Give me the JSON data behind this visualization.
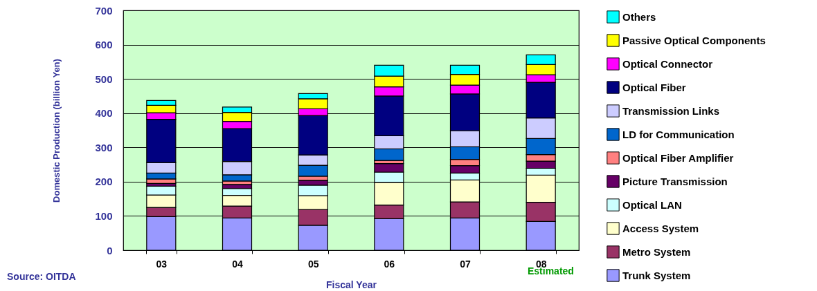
{
  "chart_data": {
    "type": "bar",
    "stacked": true,
    "xlabel": "Fiscal Year",
    "ylabel": "Domestic Production  (billion Yen)",
    "categories": [
      "03",
      "04",
      "05",
      "06",
      "07",
      "08"
    ],
    "ylim": [
      0,
      700
    ],
    "yticks": [
      0,
      100,
      200,
      300,
      400,
      500,
      600,
      700
    ],
    "grid": "y",
    "legend": "right",
    "annotations": [
      "Source: OITDA",
      "Estimated"
    ],
    "series": [
      {
        "name": "Trunk System",
        "color": "#9999ff",
        "values": [
          98,
          94,
          73,
          92,
          94,
          84
        ]
      },
      {
        "name": "Metro System",
        "color": "#993366",
        "values": [
          27,
          35,
          46,
          40,
          47,
          56
        ]
      },
      {
        "name": "Access System",
        "color": "#ffffcc",
        "values": [
          36,
          31,
          40,
          66,
          64,
          79
        ]
      },
      {
        "name": "Optical LAN",
        "color": "#ccffff",
        "values": [
          26,
          20,
          31,
          30,
          20,
          20
        ]
      },
      {
        "name": "Picture Transmission",
        "color": "#660066",
        "values": [
          8,
          12,
          14,
          25,
          22,
          21
        ]
      },
      {
        "name": "Optical Fiber Amplifier",
        "color": "#ff8080",
        "values": [
          13,
          10,
          12,
          9,
          18,
          19
        ]
      },
      {
        "name": "LD for Communication",
        "color": "#0066cc",
        "values": [
          17,
          18,
          32,
          34,
          37,
          47
        ]
      },
      {
        "name": "Transmission Links",
        "color": "#ccccff",
        "values": [
          31,
          39,
          30,
          38,
          47,
          60
        ]
      },
      {
        "name": "Optical Fiber",
        "color": "#000080",
        "values": [
          126,
          96,
          115,
          116,
          107,
          104
        ]
      },
      {
        "name": "Optical Connector",
        "color": "#ff00ff",
        "values": [
          19,
          21,
          20,
          27,
          26,
          22
        ]
      },
      {
        "name": "Passive Optical Components",
        "color": "#ffff00",
        "values": [
          22,
          26,
          29,
          31,
          31,
          30
        ]
      },
      {
        "name": "Others",
        "color": "#00ffff",
        "values": [
          14,
          16,
          15,
          32,
          27,
          28
        ]
      }
    ]
  }
}
